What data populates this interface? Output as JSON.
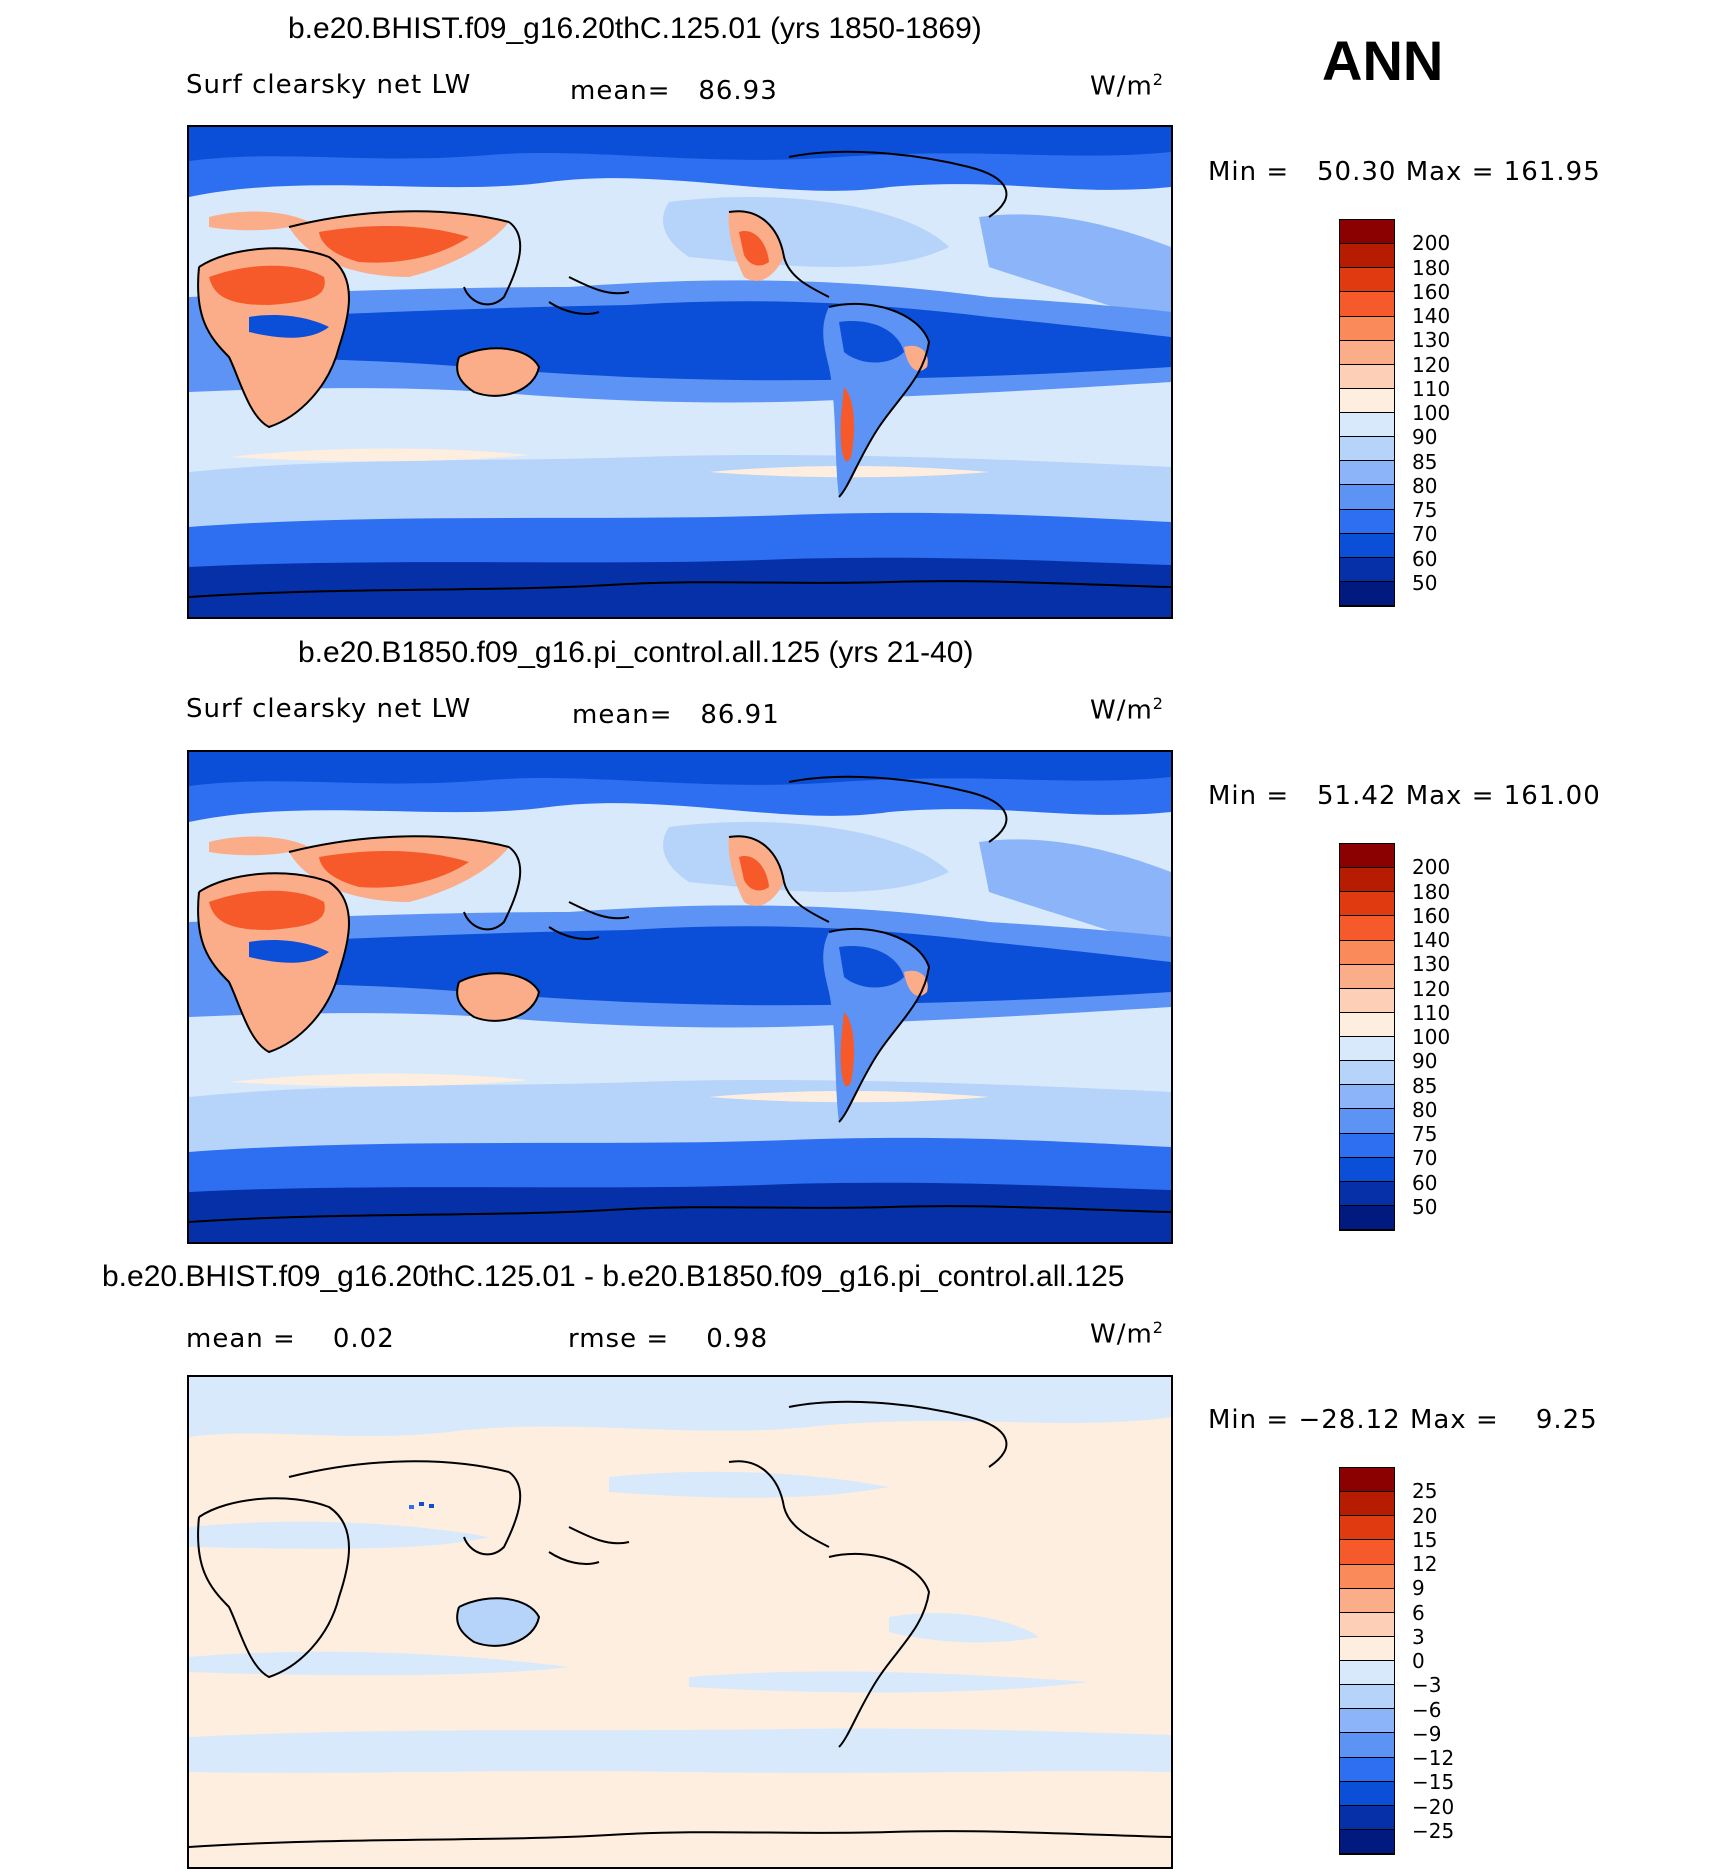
{
  "season": "ANN",
  "panels": [
    {
      "title": "b.e20.BHIST.f09_g16.20thC.125.01 (yrs 1850-1869)",
      "variable": "Surf clearsky net LW",
      "stat1_label": "mean=",
      "stat1_value": "86.93",
      "stat2_label": "",
      "stat2_value": "",
      "units": "W/m",
      "units_sup": "2",
      "min_label": "Min =",
      "min_value": "50.30",
      "max_label": "Max =",
      "max_value": "161.95",
      "levels": [
        "200",
        "180",
        "160",
        "140",
        "130",
        "120",
        "110",
        "100",
        "90",
        "85",
        "80",
        "75",
        "70",
        "60",
        "50"
      ],
      "colors": [
        "#8b0000",
        "#b81c00",
        "#e03a10",
        "#f65a2a",
        "#fa8a5a",
        "#fbac88",
        "#fdcfb6",
        "#feeedf",
        "#d8e9fb",
        "#b6d3fa",
        "#8bb5f8",
        "#5c93f5",
        "#2d6ff0",
        "#0b4fd8",
        "#0530a8",
        "#001a80"
      ]
    },
    {
      "title": "b.e20.B1850.f09_g16.pi_control.all.125 (yrs 21-40)",
      "variable": "Surf clearsky net LW",
      "stat1_label": "mean=",
      "stat1_value": "86.91",
      "stat2_label": "",
      "stat2_value": "",
      "units": "W/m",
      "units_sup": "2",
      "min_label": "Min =",
      "min_value": "51.42",
      "max_label": "Max =",
      "max_value": "161.00",
      "levels": [
        "200",
        "180",
        "160",
        "140",
        "130",
        "120",
        "110",
        "100",
        "90",
        "85",
        "80",
        "75",
        "70",
        "60",
        "50"
      ],
      "colors": [
        "#8b0000",
        "#b81c00",
        "#e03a10",
        "#f65a2a",
        "#fa8a5a",
        "#fbac88",
        "#fdcfb6",
        "#feeedf",
        "#d8e9fb",
        "#b6d3fa",
        "#8bb5f8",
        "#5c93f5",
        "#2d6ff0",
        "#0b4fd8",
        "#0530a8",
        "#001a80"
      ]
    },
    {
      "title": "b.e20.BHIST.f09_g16.20thC.125.01 - b.e20.B1850.f09_g16.pi_control.all.125",
      "variable": "",
      "stat1_label": "mean =",
      "stat1_value": "0.02",
      "stat2_label": "rmse =",
      "stat2_value": "0.98",
      "units": "W/m",
      "units_sup": "2",
      "min_label": "Min =",
      "min_value": "−28.12",
      "max_label": "Max =",
      "max_value": "9.25",
      "levels": [
        "25",
        "20",
        "15",
        "12",
        "9",
        "6",
        "3",
        "0",
        "−3",
        "−6",
        "−9",
        "−12",
        "−15",
        "−20",
        "−25"
      ],
      "colors": [
        "#8b0000",
        "#b81c00",
        "#e03a10",
        "#f65a2a",
        "#fa8a5a",
        "#fbac88",
        "#fdcfb6",
        "#feeedf",
        "#d8e9fb",
        "#b6d3fa",
        "#8bb5f8",
        "#5c93f5",
        "#2d6ff0",
        "#0b4fd8",
        "#0530a8",
        "#001a80"
      ]
    }
  ]
}
